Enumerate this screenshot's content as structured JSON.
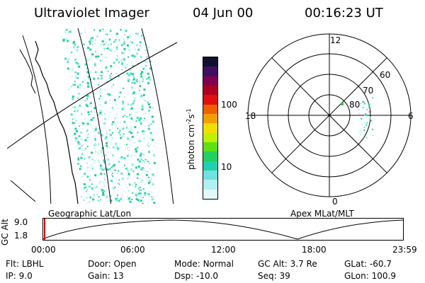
{
  "header": {
    "instrument": "Ultraviolet Imager",
    "date": "04 Jun 00",
    "time": "00:16:23 UT"
  },
  "colorbar": {
    "label": "photon cm",
    "label_sup1": "-2",
    "label_mid": "s",
    "label_sup2": "-1",
    "tick_high": "100",
    "tick_low": "10",
    "colors": [
      "#101030",
      "#401060",
      "#800050",
      "#b00020",
      "#e01010",
      "#f06000",
      "#f0a000",
      "#f0e000",
      "#c0f000",
      "#60e010",
      "#20d060",
      "#20d0b0",
      "#70e0e0",
      "#b0f0f0",
      "#e0f8f8"
    ]
  },
  "left_panel": {
    "label": "Geographic Lat/Lon"
  },
  "right_panel": {
    "label": "Apex MLat/MLT",
    "mlt_top": "12",
    "mlt_left": "18",
    "mlt_right": "6",
    "mlt_bottom": "0",
    "lat_labels": [
      "60",
      "70",
      "80"
    ]
  },
  "altitude_plot": {
    "ylabel": "GC Alt",
    "y_ticks": [
      "9.0",
      "1.8"
    ],
    "x_ticks": [
      "00:00",
      "06:00",
      "12:00",
      "18:00",
      "23:59"
    ],
    "current_time_marker": "00:16"
  },
  "status": {
    "filter_label": "Flt:",
    "filter_value": "LBHL",
    "door_label": "Door:",
    "door_value": "Open",
    "mode_label": "Mode:",
    "mode_value": "Normal",
    "gcalt_label": "GC Alt:",
    "gcalt_value": "3.7 Re",
    "glat_label": "GLat:",
    "glat_value": "-60.7",
    "ip_label": "IP:",
    "ip_value": "9.0",
    "gain_label": "Gain:",
    "gain_value": "13",
    "dsp_label": "Dsp:",
    "dsp_value": "-10.0",
    "seq_label": "Seq:",
    "seq_value": "39",
    "glon_label": "GLon:",
    "glon_value": "100.9"
  }
}
